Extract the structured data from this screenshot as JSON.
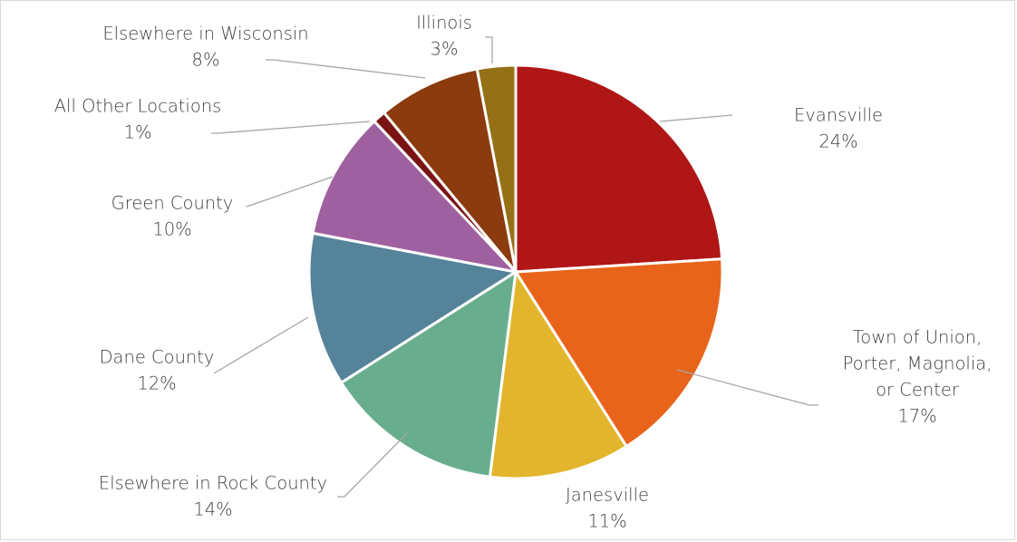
{
  "chart_data": {
    "type": "pie",
    "title": "",
    "start_angle_deg": 0,
    "direction": "clockwise",
    "legend": "none",
    "slices": [
      {
        "label": "Evansville",
        "label_lines": [
          "Evansville"
        ],
        "value": 24,
        "value_label": "24%",
        "color": "#B01616"
      },
      {
        "label": "Town of Union, Porter, Magnolia, or Center",
        "label_lines": [
          "Town of Union,",
          "Porter, Magnolia,",
          "or Center"
        ],
        "value": 17,
        "value_label": "17%",
        "color": "#E8641A"
      },
      {
        "label": "Janesville",
        "label_lines": [
          "Janesville"
        ],
        "value": 11,
        "value_label": "11%",
        "color": "#E3B52C"
      },
      {
        "label": "Elsewhere in Rock County",
        "label_lines": [
          "Elsewhere in Rock County"
        ],
        "value": 14,
        "value_label": "14%",
        "color": "#69AD8F"
      },
      {
        "label": "Dane County",
        "label_lines": [
          "Dane County"
        ],
        "value": 12,
        "value_label": "12%",
        "color": "#54839A"
      },
      {
        "label": "Green County",
        "label_lines": [
          "Green County"
        ],
        "value": 10,
        "value_label": "10%",
        "color": "#9E609F"
      },
      {
        "label": "All Other Locations",
        "label_lines": [
          "All Other Locations"
        ],
        "value": 1,
        "value_label": "1%",
        "color": "#7A1414"
      },
      {
        "label": "Elsewhere in Wisconsin",
        "label_lines": [
          "Elsewhere in Wisconsin"
        ],
        "value": 8,
        "value_label": "8%",
        "color": "#8B3B0E"
      },
      {
        "label": "Illinois",
        "label_lines": [
          "Illinois"
        ],
        "value": 3,
        "value_label": "3%",
        "color": "#957016"
      }
    ]
  }
}
